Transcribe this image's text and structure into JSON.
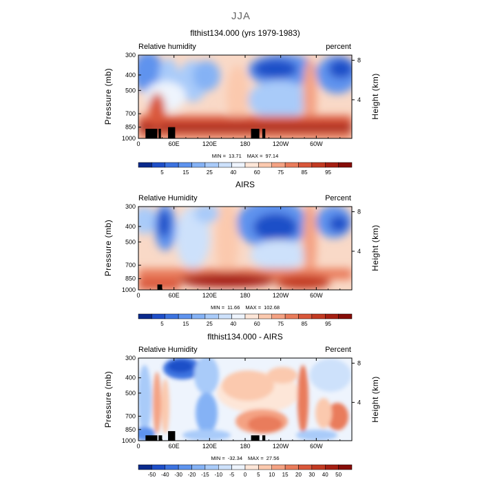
{
  "figure": {
    "title": "JJA"
  },
  "chart_data": [
    {
      "type": "heatmap",
      "title": "flthist134.000 (yrs 1979-1983)",
      "left_label": "Relative humidity",
      "right_label": "percent",
      "ylabel": "Pressure (mb)",
      "ylabel_right": "Height (km)",
      "x_ticks": [
        "0",
        "60E",
        "120E",
        "180",
        "120W",
        "60W"
      ],
      "y_ticks": [
        "300",
        "400",
        "500",
        "700",
        "850",
        "1000"
      ],
      "y_right_ticks": [
        "8",
        "4"
      ],
      "stats": {
        "min_label": "MIN =",
        "min": "13.71",
        "max_label": "MAX =",
        "max": "97.14"
      },
      "colorbar_labels": [
        "5",
        "15",
        "25",
        "40",
        "60",
        "75",
        "85",
        "95"
      ],
      "colorbar_colors": [
        "#0a2a8c",
        "#1f4fc8",
        "#3c73e0",
        "#5e93ee",
        "#85b2f5",
        "#a9cbf9",
        "#cde1fb",
        "#eef4fd",
        "#fde6d8",
        "#fbc9ae",
        "#f4a283",
        "#e97c5b",
        "#d9573a",
        "#c23a22",
        "#a51f12",
        "#860d08"
      ],
      "land_blocks": [
        [
          12,
          32
        ],
        [
          34,
          38
        ],
        [
          50,
          62
        ],
        [
          190,
          204
        ],
        [
          209,
          214
        ]
      ],
      "land_top": [
        870,
        870,
        850,
        870,
        870
      ]
    },
    {
      "type": "heatmap",
      "title": "AIRS",
      "left_label": "Relative Humidity",
      "right_label": "Percent",
      "ylabel": "Pressure (mb)",
      "ylabel_right": "Height (km)",
      "x_ticks": [
        "0",
        "60E",
        "120E",
        "180",
        "120W",
        "60W"
      ],
      "y_ticks": [
        "300",
        "400",
        "500",
        "700",
        "850",
        "1000"
      ],
      "y_right_ticks": [
        "8",
        "4"
      ],
      "stats": {
        "min_label": "MIN =",
        "min": "11.66",
        "max_label": "MAX =",
        "max": "102.68"
      },
      "colorbar_labels": [
        "5",
        "15",
        "25",
        "40",
        "60",
        "75",
        "85",
        "95"
      ],
      "colorbar_colors": [
        "#0a2a8c",
        "#1f4fc8",
        "#3c73e0",
        "#5e93ee",
        "#85b2f5",
        "#a9cbf9",
        "#cde1fb",
        "#eef4fd",
        "#fde6d8",
        "#fbc9ae",
        "#f4a283",
        "#e97c5b",
        "#d9573a",
        "#c23a22",
        "#a51f12",
        "#860d08"
      ],
      "land_blocks": [
        [
          32,
          40
        ]
      ],
      "land_top": [
        925
      ]
    },
    {
      "type": "heatmap",
      "title": "flthist134.000 - AIRS",
      "left_label": "Relative Humidity",
      "right_label": "Percent",
      "ylabel": "Pressure (mb)",
      "ylabel_right": "Height (km)",
      "x_ticks": [
        "0",
        "60E",
        "120E",
        "180",
        "120W",
        "60W"
      ],
      "y_ticks": [
        "300",
        "400",
        "500",
        "700",
        "850",
        "1000"
      ],
      "y_right_ticks": [
        "8",
        "4"
      ],
      "stats": {
        "min_label": "MIN =",
        "min": "-32.34",
        "max_label": "MAX =",
        "max": "27.56"
      },
      "colorbar_labels": [
        "-50",
        "-40",
        "-30",
        "-20",
        "-15",
        "-10",
        "-5",
        "0",
        "5",
        "10",
        "15",
        "20",
        "30",
        "40",
        "50"
      ],
      "colorbar_colors": [
        "#0a2a8c",
        "#1f4fc8",
        "#3c73e0",
        "#5e93ee",
        "#85b2f5",
        "#a9cbf9",
        "#cde1fb",
        "#eef4fd",
        "#fde6d8",
        "#fbc9ae",
        "#f4a283",
        "#e97c5b",
        "#d9573a",
        "#c23a22",
        "#a51f12",
        "#860d08"
      ],
      "land_blocks": [
        [
          12,
          32
        ],
        [
          34,
          40
        ],
        [
          50,
          62
        ],
        [
          190,
          204
        ],
        [
          209,
          214
        ]
      ],
      "land_top": [
        925,
        925,
        870,
        925,
        925
      ]
    }
  ]
}
